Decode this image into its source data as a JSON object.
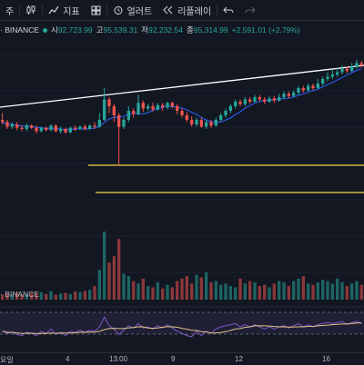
{
  "toolbar": {
    "interval_label": "주",
    "indicators_label": "지표",
    "alert_label": "얼러트",
    "replay_label": "리플레이"
  },
  "legend": {
    "symbol": "· BINANCE",
    "open_k": "시",
    "open_v": "92,723.99",
    "high_k": "고",
    "high_v": "95,539.31",
    "low_k": "저",
    "low_v": "92,232.54",
    "close_k": "종",
    "close_v": "95,314.99",
    "change": "+2,591.01 (+2.79%)"
  },
  "volume_label": "· BINANCE",
  "xaxis": {
    "ticks": [
      "요일",
      "4",
      "13:00",
      "9",
      "12",
      "16"
    ]
  },
  "colors": {
    "up": "#26a69a",
    "down": "#ef5350",
    "ma": "#2962ff",
    "trend": "#ffffff",
    "support": "#f5d742",
    "rsi": "#7e57c2",
    "rsi_ma": "#e0c48a"
  },
  "chart_data": {
    "type": "candlestick",
    "candles": [
      [
        80,
        78,
        86,
        76
      ],
      [
        78,
        74,
        80,
        72
      ],
      [
        74,
        76,
        78,
        72
      ],
      [
        76,
        73,
        78,
        71
      ],
      [
        73,
        72,
        75,
        70
      ],
      [
        72,
        75,
        77,
        70
      ],
      [
        75,
        73,
        76,
        72
      ],
      [
        73,
        70,
        75,
        68
      ],
      [
        70,
        73,
        74,
        69
      ],
      [
        73,
        71,
        74,
        70
      ],
      [
        71,
        75,
        76,
        70
      ],
      [
        75,
        70,
        76,
        69
      ],
      [
        70,
        72,
        74,
        68
      ],
      [
        72,
        69,
        73,
        68
      ],
      [
        69,
        73,
        74,
        68
      ],
      [
        73,
        72,
        75,
        70
      ],
      [
        72,
        74,
        75,
        71
      ],
      [
        74,
        72,
        76,
        71
      ],
      [
        72,
        75,
        76,
        71
      ],
      [
        75,
        74,
        78,
        72
      ],
      [
        74,
        80,
        86,
        73
      ],
      [
        80,
        98,
        108,
        79
      ],
      [
        98,
        92,
        100,
        86
      ],
      [
        92,
        84,
        94,
        78
      ],
      [
        84,
        74,
        86,
        40
      ],
      [
        74,
        80,
        82,
        72
      ],
      [
        80,
        88,
        92,
        78
      ],
      [
        88,
        85,
        90,
        82
      ],
      [
        85,
        95,
        102,
        84
      ],
      [
        95,
        90,
        97,
        87
      ],
      [
        90,
        92,
        94,
        88
      ],
      [
        92,
        89,
        95,
        87
      ],
      [
        89,
        93,
        95,
        88
      ],
      [
        93,
        91,
        95,
        88
      ],
      [
        91,
        95,
        96,
        89
      ],
      [
        95,
        92,
        96,
        90
      ],
      [
        92,
        88,
        94,
        85
      ],
      [
        88,
        84,
        90,
        82
      ],
      [
        84,
        80,
        87,
        78
      ],
      [
        80,
        76,
        83,
        74
      ],
      [
        76,
        80,
        82,
        74
      ],
      [
        80,
        74,
        82,
        73
      ],
      [
        74,
        78,
        80,
        72
      ],
      [
        78,
        75,
        80,
        73
      ],
      [
        75,
        80,
        82,
        74
      ],
      [
        80,
        84,
        86,
        78
      ],
      [
        84,
        88,
        90,
        82
      ],
      [
        88,
        92,
        94,
        86
      ],
      [
        92,
        96,
        98,
        90
      ],
      [
        96,
        94,
        98,
        92
      ],
      [
        94,
        98,
        100,
        92
      ],
      [
        98,
        96,
        100,
        94
      ],
      [
        96,
        100,
        102,
        95
      ],
      [
        100,
        98,
        102,
        96
      ],
      [
        98,
        96,
        100,
        94
      ],
      [
        96,
        99,
        101,
        95
      ],
      [
        99,
        97,
        101,
        95
      ],
      [
        97,
        100,
        103,
        96
      ],
      [
        100,
        103,
        105,
        98
      ],
      [
        103,
        101,
        105,
        99
      ],
      [
        101,
        104,
        106,
        100
      ],
      [
        104,
        108,
        110,
        102
      ],
      [
        108,
        106,
        110,
        104
      ],
      [
        106,
        110,
        112,
        105
      ],
      [
        110,
        108,
        112,
        106
      ],
      [
        108,
        112,
        116,
        107
      ],
      [
        112,
        116,
        118,
        110
      ],
      [
        116,
        118,
        122,
        114
      ],
      [
        118,
        120,
        124,
        116
      ],
      [
        120,
        122,
        126,
        118
      ],
      [
        122,
        125,
        128,
        120
      ],
      [
        125,
        123,
        127,
        121
      ],
      [
        123,
        127,
        130,
        122
      ],
      [
        127,
        130,
        133,
        125
      ],
      [
        130,
        128,
        132,
        126
      ]
    ],
    "volumes": [
      8,
      10,
      9,
      12,
      8,
      9,
      11,
      10,
      12,
      9,
      14,
      8,
      10,
      11,
      9,
      13,
      12,
      14,
      16,
      22,
      48,
      110,
      60,
      70,
      98,
      42,
      38,
      30,
      26,
      34,
      22,
      20,
      28,
      18,
      24,
      20,
      30,
      34,
      38,
      26,
      40,
      36,
      44,
      28,
      30,
      24,
      26,
      22,
      20,
      34,
      26,
      30,
      28,
      22,
      24,
      20,
      26,
      30,
      28,
      22,
      30,
      34,
      38,
      26,
      24,
      28,
      32,
      30,
      26,
      34,
      28,
      22,
      26,
      30,
      24
    ],
    "rsi": [
      52,
      48,
      50,
      46,
      44,
      50,
      48,
      44,
      52,
      48,
      56,
      46,
      50,
      44,
      52,
      50,
      54,
      50,
      54,
      52,
      60,
      78,
      62,
      56,
      46,
      54,
      62,
      58,
      66,
      58,
      60,
      56,
      62,
      58,
      64,
      58,
      52,
      48,
      44,
      42,
      52,
      44,
      52,
      48,
      56,
      60,
      62,
      64,
      66,
      60,
      64,
      60,
      64,
      60,
      56,
      60,
      56,
      60,
      62,
      58,
      62,
      66,
      60,
      64,
      60,
      64,
      66,
      68,
      66,
      68,
      70,
      64,
      68,
      70,
      66
    ]
  }
}
